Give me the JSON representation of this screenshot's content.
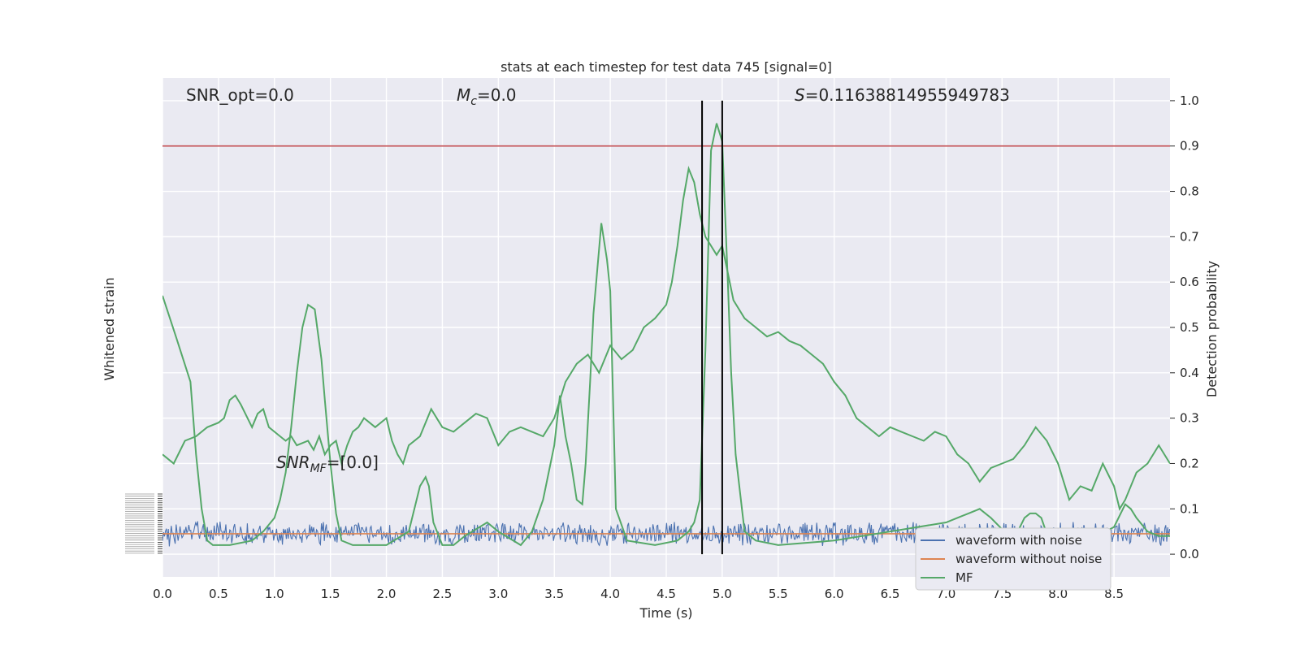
{
  "chart_data": {
    "type": "line",
    "title": "stats at each timestep for test data 745 [signal=0]",
    "xlabel": "Time (s)",
    "ylabel_left": "Whitened strain",
    "ylabel_right": "Detection probability",
    "xlim": [
      0.0,
      9.0
    ],
    "ylim_right": [
      -0.05,
      1.05
    ],
    "x_ticks": [
      "0.0",
      "0.5",
      "1.0",
      "1.5",
      "2.0",
      "2.5",
      "3.0",
      "3.5",
      "4.0",
      "4.5",
      "5.0",
      "5.5",
      "6.0",
      "6.5",
      "7.0",
      "7.5",
      "8.0",
      "8.5"
    ],
    "y_ticks_right": [
      "0.0",
      "0.1",
      "0.2",
      "0.3",
      "0.4",
      "0.5",
      "0.6",
      "0.7",
      "0.8",
      "0.9",
      "1.0"
    ],
    "left_axis_ticks_illegible": true,
    "grid": true,
    "annotations": {
      "snr_opt": "SNR_opt=0.0",
      "mc_symbol": "M",
      "mc_sub": "c",
      "mc_value": "=0.0",
      "s_symbol": "S",
      "s_value": "=0.11638814955949783",
      "snr_mf_symbol": "SNR",
      "snr_mf_sub": "MF",
      "snr_mf_value": "=[0.0]"
    },
    "threshold": 0.9,
    "vertical_lines_x": [
      4.82,
      5.0
    ],
    "legend": {
      "placement": "lower-right",
      "entries": [
        "waveform with noise",
        "waveform without noise",
        "MF"
      ]
    },
    "series": [
      {
        "name": "MF",
        "axis": "right",
        "x": [
          0.0,
          0.12,
          0.25,
          0.3,
          0.35,
          0.4,
          0.45,
          0.6,
          0.8,
          0.9,
          1.0,
          1.05,
          1.1,
          1.15,
          1.2,
          1.25,
          1.3,
          1.36,
          1.42,
          1.45,
          1.5,
          1.55,
          1.6,
          1.7,
          1.8,
          2.0,
          2.2,
          2.3,
          2.35,
          2.38,
          2.42,
          2.5,
          2.6,
          2.7,
          2.9,
          3.0,
          3.2,
          3.3,
          3.4,
          3.5,
          3.55,
          3.6,
          3.65,
          3.7,
          3.75,
          3.78,
          3.82,
          3.85,
          3.92,
          3.97,
          4.0,
          4.05,
          4.15,
          4.4,
          4.6,
          4.7,
          4.75,
          4.78,
          4.8,
          4.85,
          4.9,
          4.95,
          5.0,
          5.05,
          5.08,
          5.12,
          5.2,
          5.3,
          5.5,
          6.0,
          6.5,
          7.0,
          7.1,
          7.2,
          7.3,
          7.4,
          7.6,
          7.7,
          7.75,
          7.8,
          7.85,
          7.92,
          8.0,
          8.2,
          8.5,
          8.6,
          8.65,
          8.7,
          8.8,
          8.9,
          9.0
        ],
        "y": [
          0.57,
          0.48,
          0.38,
          0.22,
          0.1,
          0.03,
          0.02,
          0.02,
          0.03,
          0.05,
          0.08,
          0.12,
          0.18,
          0.28,
          0.4,
          0.5,
          0.55,
          0.54,
          0.43,
          0.34,
          0.2,
          0.09,
          0.03,
          0.02,
          0.02,
          0.02,
          0.05,
          0.15,
          0.17,
          0.15,
          0.07,
          0.02,
          0.02,
          0.04,
          0.07,
          0.05,
          0.02,
          0.05,
          0.12,
          0.24,
          0.35,
          0.26,
          0.2,
          0.12,
          0.11,
          0.2,
          0.38,
          0.53,
          0.73,
          0.65,
          0.58,
          0.1,
          0.03,
          0.02,
          0.03,
          0.05,
          0.07,
          0.1,
          0.12,
          0.45,
          0.89,
          0.95,
          0.91,
          0.6,
          0.4,
          0.22,
          0.05,
          0.03,
          0.02,
          0.03,
          0.05,
          0.07,
          0.08,
          0.09,
          0.1,
          0.08,
          0.03,
          0.08,
          0.09,
          0.09,
          0.08,
          0.03,
          0.02,
          0.02,
          0.06,
          0.11,
          0.1,
          0.08,
          0.05,
          0.04,
          0.04
        ],
        "color": "#55a868"
      },
      {
        "name": "S (detection probability)",
        "axis": "right",
        "x": [
          0.0,
          0.1,
          0.2,
          0.3,
          0.4,
          0.5,
          0.55,
          0.6,
          0.65,
          0.7,
          0.8,
          0.85,
          0.9,
          0.95,
          1.0,
          1.05,
          1.1,
          1.15,
          1.2,
          1.3,
          1.35,
          1.4,
          1.45,
          1.5,
          1.55,
          1.6,
          1.65,
          1.7,
          1.75,
          1.8,
          1.85,
          1.9,
          2.0,
          2.05,
          2.1,
          2.15,
          2.2,
          2.3,
          2.4,
          2.5,
          2.6,
          2.7,
          2.8,
          2.9,
          3.0,
          3.1,
          3.2,
          3.3,
          3.4,
          3.5,
          3.6,
          3.7,
          3.8,
          3.9,
          4.0,
          4.1,
          4.2,
          4.3,
          4.4,
          4.5,
          4.55,
          4.6,
          4.65,
          4.7,
          4.75,
          4.8,
          4.85,
          4.9,
          4.95,
          5.0,
          5.05,
          5.1,
          5.2,
          5.3,
          5.4,
          5.5,
          5.6,
          5.7,
          5.8,
          5.9,
          6.0,
          6.1,
          6.2,
          6.3,
          6.4,
          6.5,
          6.6,
          6.7,
          6.8,
          6.9,
          7.0,
          7.1,
          7.2,
          7.3,
          7.4,
          7.5,
          7.6,
          7.7,
          7.8,
          7.9,
          8.0,
          8.05,
          8.1,
          8.2,
          8.3,
          8.4,
          8.5,
          8.55,
          8.6,
          8.7,
          8.8,
          8.9,
          9.0
        ],
        "y": [
          0.22,
          0.2,
          0.25,
          0.26,
          0.28,
          0.29,
          0.3,
          0.34,
          0.35,
          0.33,
          0.28,
          0.31,
          0.32,
          0.28,
          0.27,
          0.26,
          0.25,
          0.26,
          0.24,
          0.25,
          0.23,
          0.26,
          0.22,
          0.24,
          0.25,
          0.2,
          0.24,
          0.27,
          0.28,
          0.3,
          0.29,
          0.28,
          0.3,
          0.25,
          0.22,
          0.2,
          0.24,
          0.26,
          0.32,
          0.28,
          0.27,
          0.29,
          0.31,
          0.3,
          0.24,
          0.27,
          0.28,
          0.27,
          0.26,
          0.3,
          0.38,
          0.42,
          0.44,
          0.4,
          0.46,
          0.43,
          0.45,
          0.5,
          0.52,
          0.55,
          0.6,
          0.68,
          0.78,
          0.85,
          0.82,
          0.75,
          0.7,
          0.68,
          0.66,
          0.68,
          0.62,
          0.56,
          0.52,
          0.5,
          0.48,
          0.49,
          0.47,
          0.46,
          0.44,
          0.42,
          0.38,
          0.35,
          0.3,
          0.28,
          0.26,
          0.28,
          0.27,
          0.26,
          0.25,
          0.27,
          0.26,
          0.22,
          0.2,
          0.16,
          0.19,
          0.2,
          0.21,
          0.24,
          0.28,
          0.25,
          0.2,
          0.16,
          0.12,
          0.15,
          0.14,
          0.2,
          0.15,
          0.1,
          0.12,
          0.18,
          0.2,
          0.24,
          0.2
        ],
        "color": "#55a868"
      },
      {
        "name": "waveform with noise",
        "axis": "left",
        "representation": "dense noise band around 0",
        "color": "#4c72b0"
      },
      {
        "name": "waveform without noise",
        "axis": "left",
        "representation": "flat line at 0",
        "color": "#dd8452"
      }
    ],
    "colors": {
      "axes_bg": "#eaeaf2",
      "grid": "#ffffff",
      "threshold_line": "#c44e52",
      "vertical_lines": "#000000",
      "legend_bg": "#eaeaf2"
    }
  }
}
